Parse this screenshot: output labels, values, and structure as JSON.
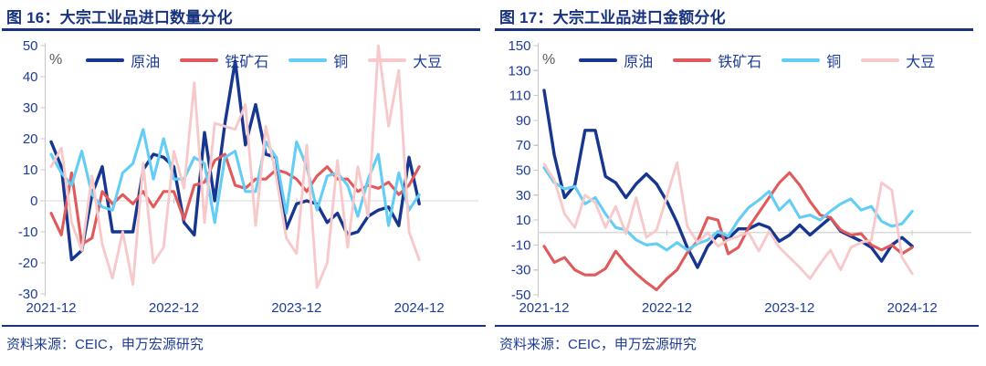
{
  "page": {
    "background": "#FFFFFF"
  },
  "theme": {
    "heading_color": "#17337F",
    "axis_text_color": "#1D3C96",
    "unit_text_color": "#595959",
    "zero_line_color": "#DADADA",
    "axis_line_color": "#C8C8C8",
    "rule_color": "#17337F"
  },
  "sources": [
    "资料来源：CEIC，申万宏源研究",
    "资料来源：CEIC，申万宏源研究"
  ],
  "chart_data": [
    {
      "type": "line",
      "title": "图 16：大宗工业品进口数量分化",
      "unit": "%",
      "ylim": [
        -30,
        50
      ],
      "y_ticks": [
        50,
        40,
        30,
        20,
        10,
        0,
        -10,
        -20,
        -30
      ],
      "grid": "zero-line-only",
      "legend_position": "top",
      "x_tick_labels": [
        "2021-12",
        "2022-12",
        "2023-12",
        "2024-12"
      ],
      "x_tick_indices": [
        0,
        12,
        24,
        36
      ],
      "categories": [
        "2021-12",
        "2022-01",
        "2022-02",
        "2022-03",
        "2022-04",
        "2022-05",
        "2022-06",
        "2022-07",
        "2022-08",
        "2022-09",
        "2022-10",
        "2022-11",
        "2022-12",
        "2023-01",
        "2023-02",
        "2023-03",
        "2023-04",
        "2023-05",
        "2023-06",
        "2023-07",
        "2023-08",
        "2023-09",
        "2023-10",
        "2023-11",
        "2023-12",
        "2024-01",
        "2024-02",
        "2024-03",
        "2024-04",
        "2024-05",
        "2024-06",
        "2024-07",
        "2024-08",
        "2024-09",
        "2024-10",
        "2024-11",
        "2024-12"
      ],
      "series": [
        {
          "name": "原油",
          "color": "#16368F",
          "values": [
            19,
            11,
            -19,
            -16,
            2,
            11,
            -10,
            -10,
            -10,
            10,
            15,
            14,
            11,
            -7,
            -11,
            22,
            0,
            25,
            45,
            18,
            31,
            15,
            14,
            -9,
            -1,
            0,
            -1,
            -7,
            -4,
            -11,
            -10,
            -5,
            -3,
            -2,
            -8,
            14,
            -1
          ]
        },
        {
          "name": "铁矿石",
          "color": "#E05A5C",
          "values": [
            -4,
            -11,
            9,
            -14,
            -12,
            3,
            -1,
            2,
            -1,
            3,
            -2,
            3,
            3,
            -6,
            5,
            6,
            13,
            15,
            5,
            4,
            7,
            7,
            10,
            9,
            7,
            3,
            8,
            11,
            7,
            7,
            3,
            5,
            4,
            6,
            2,
            5,
            11
          ]
        },
        {
          "name": "铜",
          "color": "#63CDF5",
          "values": [
            15,
            9,
            5,
            16,
            2,
            -2,
            -3,
            9,
            12,
            23,
            7,
            20,
            7,
            7,
            14,
            12,
            -7,
            14,
            16,
            3,
            3,
            19,
            14,
            -4,
            19,
            11,
            -3,
            8,
            9,
            5,
            -5,
            7,
            15,
            -8,
            9,
            -3,
            2
          ]
        },
        {
          "name": "大豆",
          "color": "#F8C9CB",
          "values": [
            11,
            17,
            -7,
            -16,
            8,
            -14,
            -25,
            -10,
            -27,
            12,
            -20,
            -15,
            16,
            4,
            38,
            -7,
            25,
            24,
            23,
            31,
            -8,
            24,
            8,
            -12,
            -17,
            18,
            -28,
            -20,
            13,
            -15,
            11,
            -5,
            50,
            24,
            42,
            -10,
            -19
          ]
        }
      ]
    },
    {
      "type": "line",
      "title": "图 17：大宗工业品进口金额分化",
      "unit": "%",
      "ylim": [
        -50,
        150
      ],
      "y_ticks": [
        150,
        130,
        110,
        90,
        70,
        50,
        30,
        10,
        -10,
        -30,
        -50
      ],
      "grid": "zero-line-only",
      "legend_position": "top",
      "x_tick_labels": [
        "2021-12",
        "2022-12",
        "2023-12",
        "2024-12"
      ],
      "x_tick_indices": [
        0,
        12,
        24,
        36
      ],
      "categories": [
        "2021-12",
        "2022-01",
        "2022-02",
        "2022-03",
        "2022-04",
        "2022-05",
        "2022-06",
        "2022-07",
        "2022-08",
        "2022-09",
        "2022-10",
        "2022-11",
        "2022-12",
        "2023-01",
        "2023-02",
        "2023-03",
        "2023-04",
        "2023-05",
        "2023-06",
        "2023-07",
        "2023-08",
        "2023-09",
        "2023-10",
        "2023-11",
        "2023-12",
        "2024-01",
        "2024-02",
        "2024-03",
        "2024-04",
        "2024-05",
        "2024-06",
        "2024-07",
        "2024-08",
        "2024-09",
        "2024-10",
        "2024-11",
        "2024-12"
      ],
      "series": [
        {
          "name": "原油",
          "color": "#16368F",
          "values": [
            114,
            62,
            28,
            38,
            82,
            82,
            45,
            40,
            28,
            39,
            47,
            39,
            25,
            8,
            -12,
            -28,
            -11,
            -2,
            -5,
            3,
            3,
            7,
            4,
            -7,
            -2,
            6,
            -2,
            5,
            12,
            1,
            -3,
            -7,
            -12,
            -23,
            -10,
            -4,
            -11
          ]
        },
        {
          "name": "铁矿石",
          "color": "#E05A5C",
          "values": [
            -11,
            -24,
            -20,
            -30,
            -34,
            -34,
            -29,
            -15,
            -25,
            -33,
            -40,
            -46,
            -37,
            -30,
            -16,
            -7,
            12,
            10,
            -17,
            -12,
            4,
            16,
            28,
            40,
            48,
            38,
            25,
            14,
            12,
            2,
            -2,
            -1,
            -10,
            -14,
            -10,
            -17,
            -12
          ]
        },
        {
          "name": "铜",
          "color": "#63CDF5",
          "values": [
            52,
            40,
            35,
            37,
            23,
            28,
            15,
            4,
            2,
            -6,
            -10,
            -9,
            -14,
            -8,
            -14,
            -9,
            -6,
            1,
            -3,
            10,
            20,
            26,
            33,
            18,
            26,
            12,
            14,
            10,
            17,
            23,
            27,
            18,
            21,
            9,
            5,
            7,
            17
          ]
        },
        {
          "name": "大豆",
          "color": "#F8C9CB",
          "values": [
            55,
            42,
            15,
            4,
            30,
            24,
            4,
            21,
            -1,
            28,
            -4,
            2,
            29,
            56,
            5,
            -8,
            0,
            -11,
            -6,
            -3,
            0,
            -15,
            1,
            -12,
            -20,
            -28,
            -37,
            -25,
            -14,
            -30,
            -12,
            -8,
            -6,
            40,
            34,
            -20,
            -33
          ]
        }
      ]
    }
  ]
}
